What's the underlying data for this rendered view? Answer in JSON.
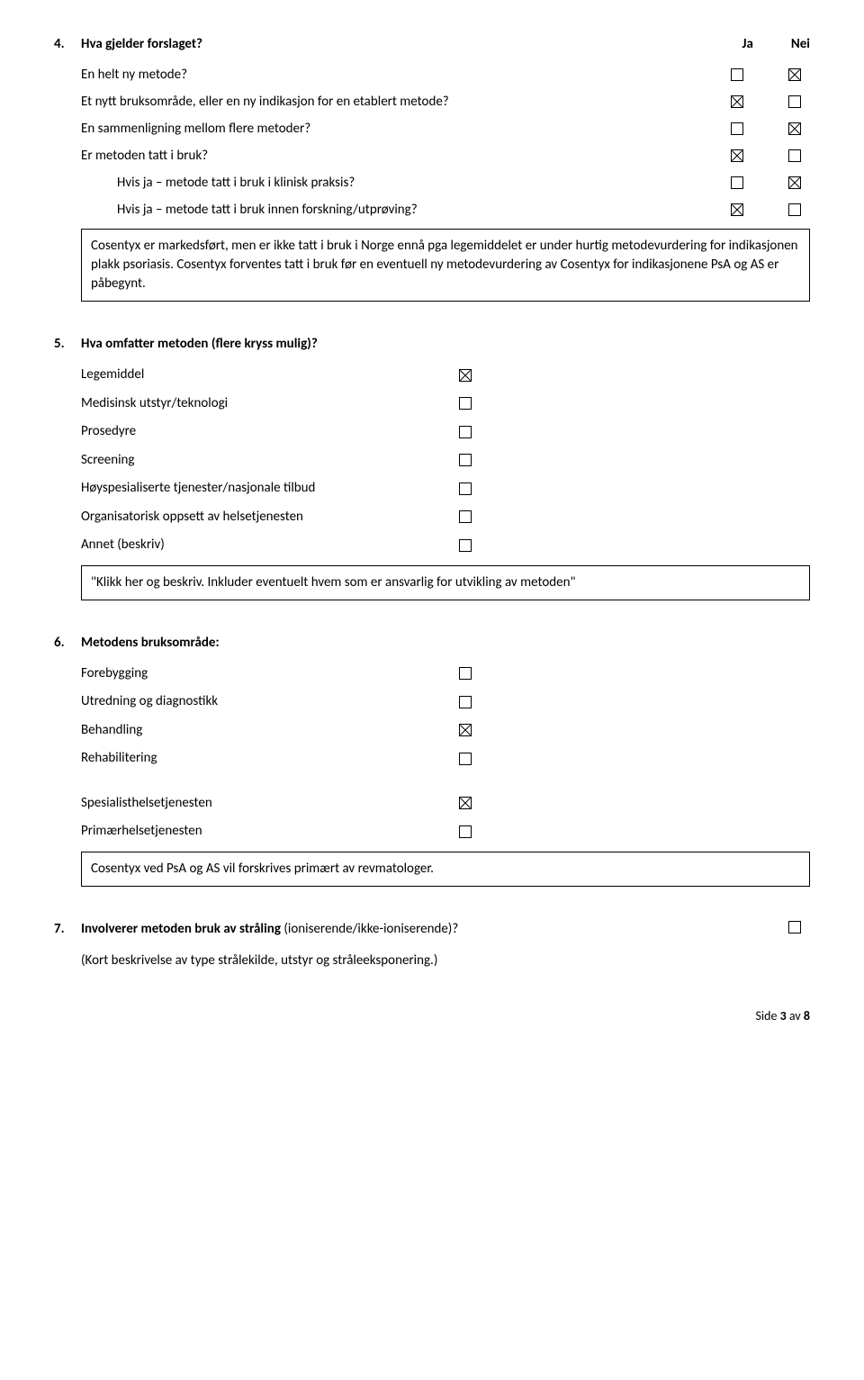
{
  "q4": {
    "num": "4.",
    "title": "Hva gjelder forslaget?",
    "col_ja": "Ja",
    "col_nei": "Nei",
    "rows": [
      {
        "label": "En helt ny metode?",
        "ja": false,
        "nei": true,
        "indent": false
      },
      {
        "label": "Et nytt bruksområde, eller en ny indikasjon for en etablert metode?",
        "ja": true,
        "nei": false,
        "indent": false
      },
      {
        "label": "En sammenligning mellom flere metoder?",
        "ja": false,
        "nei": true,
        "indent": false
      },
      {
        "label": "Er metoden tatt i bruk?",
        "ja": true,
        "nei": false,
        "indent": false
      },
      {
        "label": "Hvis ja – metode tatt i bruk i klinisk praksis?",
        "ja": false,
        "nei": true,
        "indent": true
      },
      {
        "label": "Hvis ja – metode tatt i bruk innen forskning/utprøving?",
        "ja": true,
        "nei": false,
        "indent": true
      }
    ],
    "note": "Cosentyx er markedsført, men er ikke tatt i bruk i Norge ennå pga legemiddelet er under hurtig metodevurdering for indikasjonen plakk psoriasis. Cosentyx forventes tatt i bruk før en eventuell ny metodevurdering av Cosentyx for indikasjonene PsA og AS er påbegynt."
  },
  "q5": {
    "num": "5.",
    "title": "Hva omfatter metoden (flere kryss mulig)?",
    "rows": [
      {
        "label": "Legemiddel",
        "checked": true
      },
      {
        "label": "Medisinsk utstyr/teknologi",
        "checked": false
      },
      {
        "label": "Prosedyre",
        "checked": false
      },
      {
        "label": "Screening",
        "checked": false
      },
      {
        "label": "Høyspesialiserte tjenester/nasjonale tilbud",
        "checked": false
      },
      {
        "label": "Organisatorisk oppsett av helsetjenesten",
        "checked": false
      },
      {
        "label": "Annet (beskriv)",
        "checked": false
      }
    ],
    "note": "\"Klikk her og beskriv. Inkluder eventuelt hvem som er ansvarlig for utvikling av metoden\""
  },
  "q6": {
    "num": "6.",
    "title": "Metodens bruksområde:",
    "group1": [
      {
        "label": "Forebygging",
        "checked": false
      },
      {
        "label": "Utredning og diagnostikk",
        "checked": false
      },
      {
        "label": "Behandling",
        "checked": true
      },
      {
        "label": "Rehabilitering",
        "checked": false
      }
    ],
    "group2": [
      {
        "label": "Spesialisthelsetjenesten",
        "checked": true
      },
      {
        "label": "Primærhelsetjenesten",
        "checked": false
      }
    ],
    "note": "Cosentyx ved PsA og AS vil forskrives primært av revmatologer."
  },
  "q7": {
    "num": "7.",
    "title_part1": "Involverer metoden bruk av stråling ",
    "title_part2": "(ioniserende/ikke-ioniserende)?",
    "checked": false,
    "sub": "(Kort beskrivelse av type strålekilde, utstyr og stråleeksponering.)"
  },
  "footer": {
    "prefix": "Side ",
    "page": "3",
    "mid": " av ",
    "total": "8"
  }
}
